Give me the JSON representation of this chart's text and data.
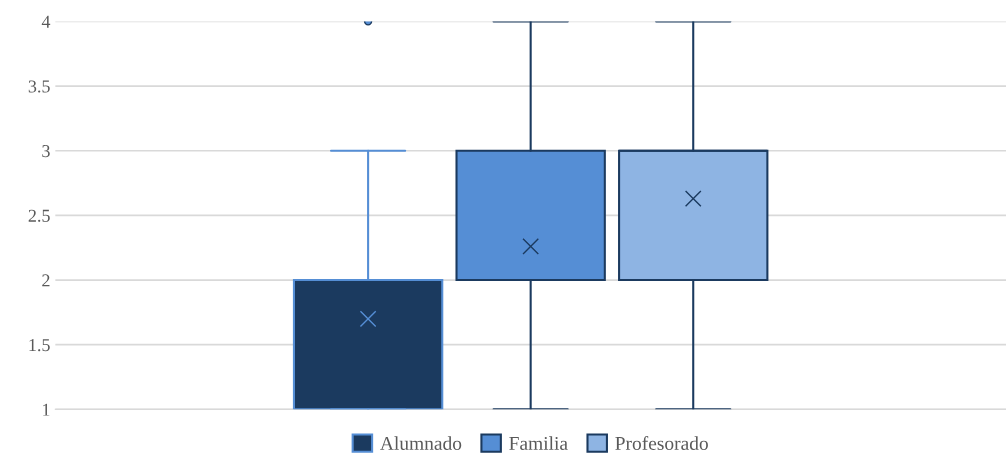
{
  "chart_data": {
    "type": "box",
    "categories": [
      null
    ],
    "series": [
      {
        "name": "Alumnado",
        "color": "#1b3a5f",
        "boxes": [
          {
            "low": 1,
            "q1": 1,
            "median": 2,
            "q3": 2,
            "high": 3,
            "mean": 1.7,
            "outliers": [
              4
            ]
          }
        ]
      },
      {
        "name": "Familia",
        "color": "#558ed5",
        "boxes": [
          {
            "low": 1,
            "q1": 2,
            "median": 2,
            "q3": 3,
            "high": 4,
            "mean": 2.26
          }
        ]
      },
      {
        "name": "Profesorado",
        "color": "#8eb4e3",
        "boxes": [
          {
            "low": 1,
            "q1": 2,
            "median": 3,
            "q3": 3,
            "high": 4,
            "mean": 2.63
          }
        ]
      }
    ],
    "ylim": [
      1,
      4
    ],
    "yticks": [
      1,
      1.5,
      2,
      2.5,
      3,
      3.5,
      4
    ],
    "grid": "y",
    "legend": "bottom",
    "marker": "cross"
  }
}
